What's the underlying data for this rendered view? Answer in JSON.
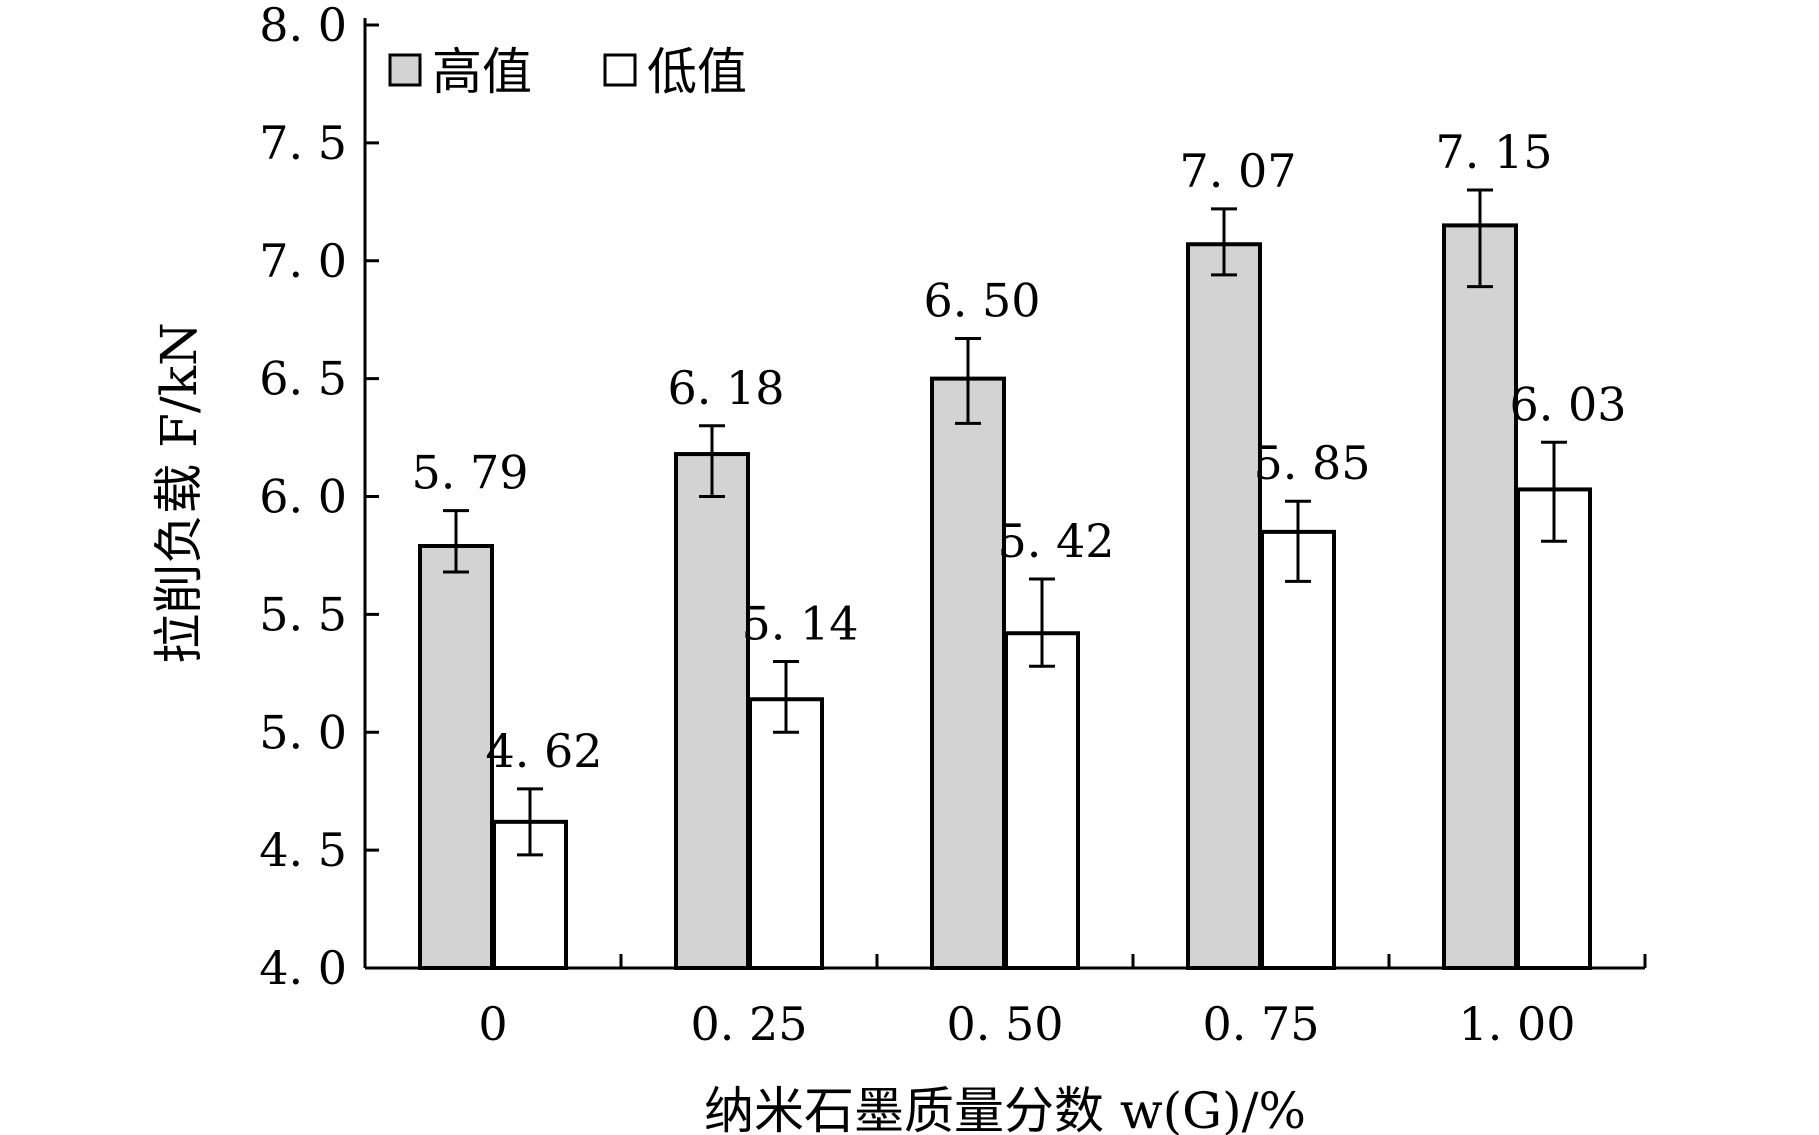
{
  "chart_data": {
    "type": "bar",
    "categories": [
      "0",
      "0.25",
      "0.50",
      "0.75",
      "1.00"
    ],
    "category_labels": [
      "0",
      "0. 25",
      "0. 50",
      "0. 75",
      "1. 00"
    ],
    "series": [
      {
        "name": "高值",
        "values": [
          5.79,
          6.18,
          6.5,
          7.07,
          7.15
        ],
        "value_labels": [
          "5. 79",
          "6. 18",
          "6. 50",
          "7. 07",
          "7. 15"
        ],
        "error_low": [
          5.68,
          6.0,
          6.31,
          6.94,
          6.89
        ],
        "error_high": [
          5.94,
          6.3,
          6.67,
          7.22,
          7.3
        ],
        "color": "#d3d3d3"
      },
      {
        "name": "低值",
        "values": [
          4.62,
          5.14,
          5.42,
          5.85,
          6.03
        ],
        "value_labels": [
          "4. 62",
          "5. 14",
          "5. 42",
          "5. 85",
          "6. 03"
        ],
        "error_low": [
          4.48,
          5.0,
          5.28,
          5.64,
          5.81
        ],
        "error_high": [
          4.76,
          5.3,
          5.65,
          5.98,
          6.23
        ],
        "color": "#ffffff"
      }
    ],
    "xlabel": "纳米石墨质量分数 w(G)/%",
    "ylabel": "拉削负载 F/kN",
    "ylim": [
      4.0,
      8.0
    ],
    "yticks": [
      4.0,
      4.5,
      5.0,
      5.5,
      6.0,
      6.5,
      7.0,
      7.5,
      8.0
    ],
    "ytick_labels": [
      "4. 0",
      "4. 5",
      "5. 0",
      "5. 5",
      "6. 0",
      "6. 5",
      "7. 0",
      "7. 5",
      "8. 0"
    ],
    "grid": false,
    "legend_position": "top-left"
  }
}
